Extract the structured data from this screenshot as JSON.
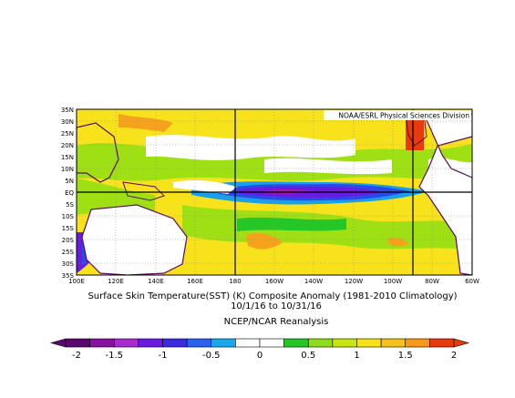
{
  "map": {
    "credit": "NOAA/ESRL Physical Sciences Division",
    "lat_labels": [
      "35N",
      "30N",
      "25N",
      "20N",
      "15N",
      "10N",
      "5N",
      "EQ",
      "5S",
      "10S",
      "15S",
      "20S",
      "25S",
      "30S",
      "35S"
    ],
    "lon_labels": [
      "100E",
      "120E",
      "140E",
      "160E",
      "180",
      "160W",
      "140W",
      "120W",
      "100W",
      "80W",
      "60W"
    ],
    "colors": {
      "neg2": "#5a0a6e",
      "neg15": "#a01aa8",
      "neg1": "#6a1be0",
      "neg05": "#2a49e8",
      "neg0": "#1aa0e8",
      "zero": "#ffffff",
      "pos0": "#25c625",
      "pos05": "#9fe014",
      "pos1": "#f7e21c",
      "pos15": "#f7a21c",
      "pos2": "#e83a0a",
      "land": "#5a0a5a"
    }
  },
  "caption": {
    "line1": "Surface Skin Temperature(SST) (K) Composite Anomaly (1981-2010 Climatology)",
    "line2": "10/1/16  to 10/31/16",
    "line3": "NCEP/NCAR Reanalysis"
  },
  "colorbar": {
    "labels": [
      "-2",
      "-1.5",
      "-1",
      "-0.5",
      "0",
      "0.5",
      "1",
      "1.5",
      "2"
    ],
    "colors": [
      "#5a0a6e",
      "#8a10a0",
      "#a82ad0",
      "#6a1be0",
      "#3a2ae0",
      "#2a63f0",
      "#1aa8ea",
      "#ffffff",
      "#ffffff",
      "#25c625",
      "#8fdc1e",
      "#c8e614",
      "#f7e21c",
      "#f7c21c",
      "#f79a1c",
      "#e83a0a"
    ]
  }
}
